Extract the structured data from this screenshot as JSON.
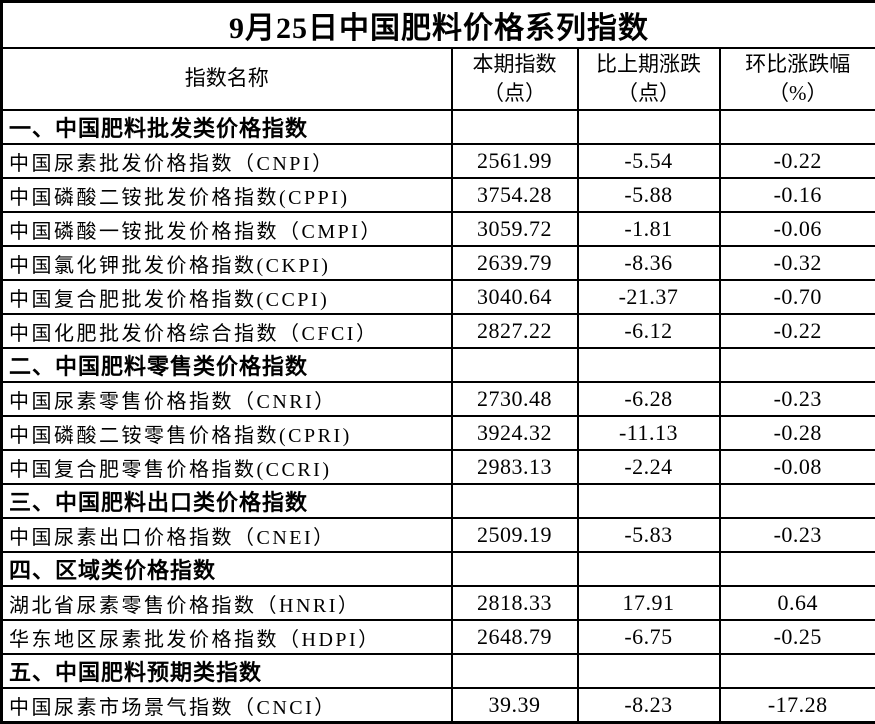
{
  "title": "9月25日中国肥料价格系列指数",
  "columns": [
    {
      "label": "指数名称",
      "sub": ""
    },
    {
      "label": "本期指数",
      "sub": "（点）"
    },
    {
      "label": "比上期涨跌",
      "sub": "（点）"
    },
    {
      "label": "环比涨跌幅",
      "sub": "（%）"
    }
  ],
  "sections": [
    {
      "header": "一、中国肥料批发类价格指数",
      "rows": [
        {
          "name": "中国尿素批发价格指数（CNPI）",
          "index": "2561.99",
          "change": "-5.54",
          "pct": "-0.22"
        },
        {
          "name": "中国磷酸二铵批发价格指数(CPPI)",
          "index": "3754.28",
          "change": "-5.88",
          "pct": "-0.16"
        },
        {
          "name": "中国磷酸一铵批发价格指数（CMPI）",
          "index": "3059.72",
          "change": "-1.81",
          "pct": "-0.06"
        },
        {
          "name": "中国氯化钾批发价格指数(CKPI)",
          "index": "2639.79",
          "change": "-8.36",
          "pct": "-0.32"
        },
        {
          "name": "中国复合肥批发价格指数(CCPI)",
          "index": "3040.64",
          "change": "-21.37",
          "pct": "-0.70"
        },
        {
          "name": "中国化肥批发价格综合指数（CFCI）",
          "index": "2827.22",
          "change": "-6.12",
          "pct": "-0.22"
        }
      ]
    },
    {
      "header": "二、中国肥料零售类价格指数",
      "rows": [
        {
          "name": "中国尿素零售价格指数（CNRI）",
          "index": "2730.48",
          "change": "-6.28",
          "pct": "-0.23"
        },
        {
          "name": "中国磷酸二铵零售价格指数(CPRI)",
          "index": "3924.32",
          "change": "-11.13",
          "pct": "-0.28"
        },
        {
          "name": "中国复合肥零售价格指数(CCRI)",
          "index": "2983.13",
          "change": "-2.24",
          "pct": "-0.08"
        }
      ]
    },
    {
      "header": "三、中国肥料出口类价格指数",
      "rows": [
        {
          "name": "中国尿素出口价格指数（CNEI）",
          "index": "2509.19",
          "change": "-5.83",
          "pct": "-0.23"
        }
      ]
    },
    {
      "header": "四、区域类价格指数",
      "rows": [
        {
          "name": "湖北省尿素零售价格指数（HNRI）",
          "index": "2818.33",
          "change": "17.91",
          "pct": "0.64"
        },
        {
          "name": "华东地区尿素批发价格指数（HDPI）",
          "index": "2648.79",
          "change": "-6.75",
          "pct": "-0.25"
        }
      ]
    },
    {
      "header": "五、中国肥料预期类指数",
      "rows": [
        {
          "name": "中国尿素市场景气指数（CNCI）",
          "index": "39.39",
          "change": "-8.23",
          "pct": "-17.28"
        }
      ]
    }
  ]
}
